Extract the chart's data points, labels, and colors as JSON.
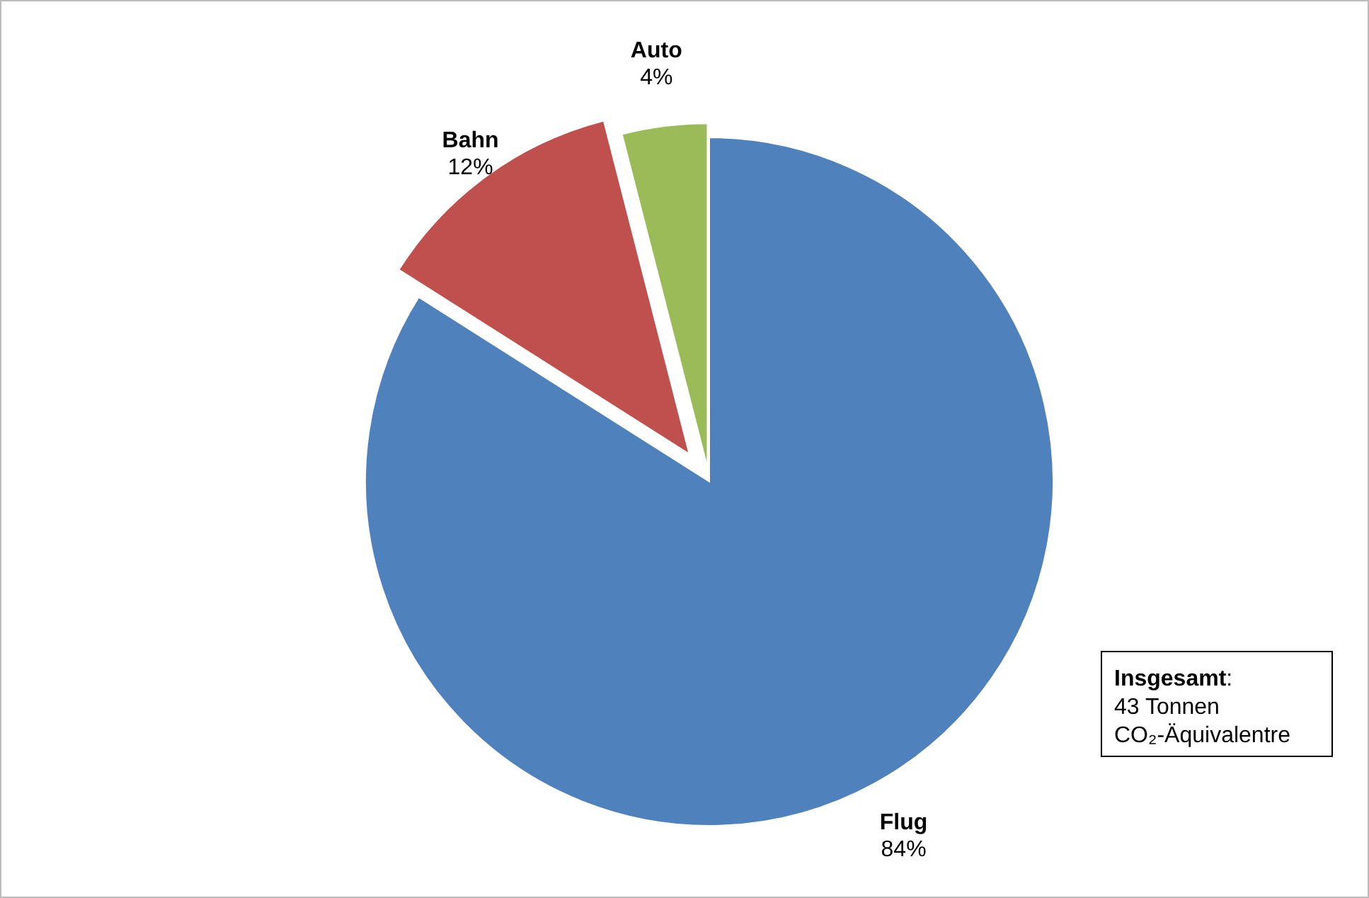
{
  "chart_data": {
    "type": "pie",
    "categories": [
      "Flug",
      "Bahn",
      "Auto"
    ],
    "values": [
      84,
      12,
      4
    ],
    "colors": [
      "#4f81bd",
      "#c0504d",
      "#9bbb59"
    ],
    "value_labels": [
      "84%",
      "12%",
      "4%"
    ],
    "annotations": [
      "Insgesamt:\n43 Tonnen\nCO₂-Äquivalentre"
    ]
  }
}
